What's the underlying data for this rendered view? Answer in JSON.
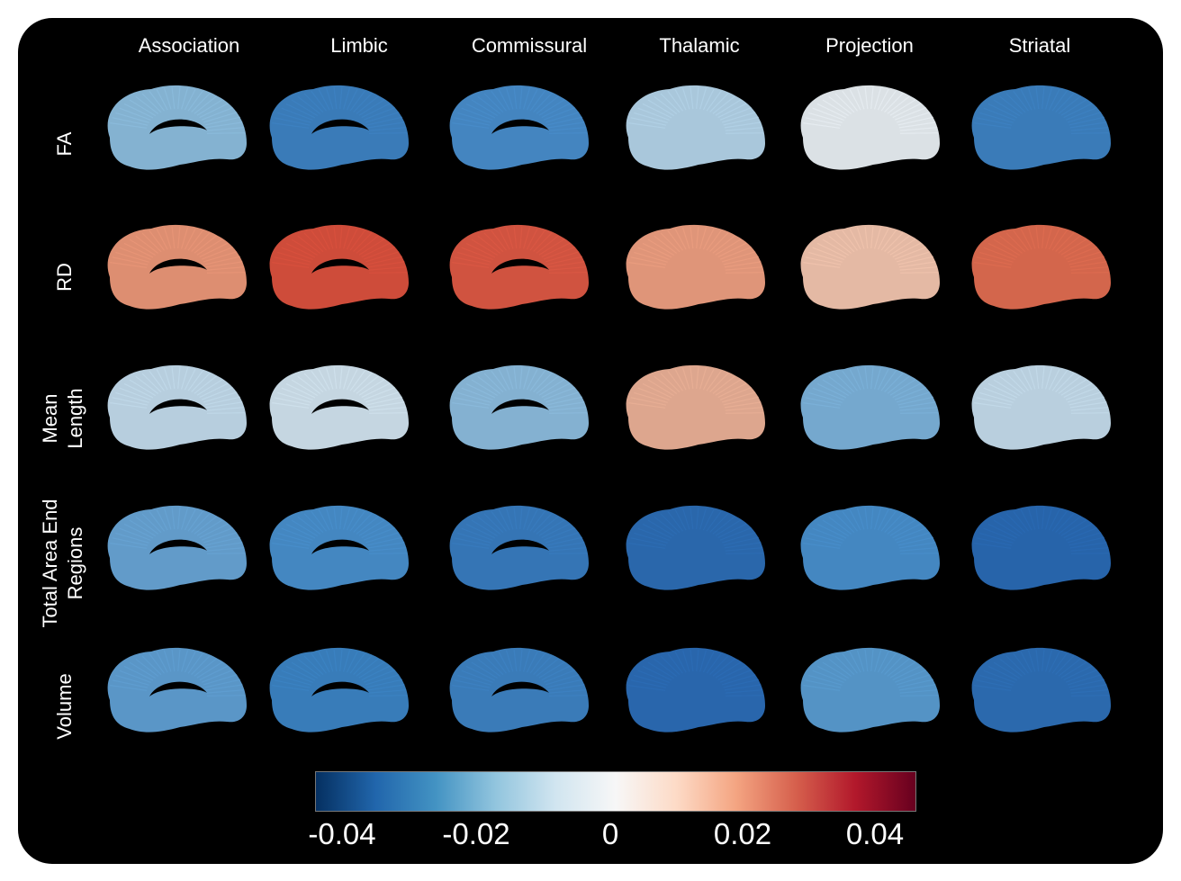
{
  "columns": [
    "Association",
    "Limbic",
    "Commissural",
    "Thalamic",
    "Projection",
    "Striatal"
  ],
  "rows": [
    {
      "lines": [
        "FA"
      ]
    },
    {
      "lines": [
        "RD"
      ]
    },
    {
      "lines": [
        "Mean",
        "Length"
      ]
    },
    {
      "lines": [
        "Total Area End",
        "Regions"
      ]
    },
    {
      "lines": [
        "Volume"
      ]
    }
  ],
  "colorbar": {
    "ticks": [
      "-0.04",
      "-0.02",
      "0",
      "0.02",
      "0.04"
    ],
    "range": [
      -0.05,
      0.05
    ],
    "colormap": [
      "#053061",
      "#2166ac",
      "#4393c3",
      "#92c5de",
      "#d1e5f0",
      "#f7f7f7",
      "#fddbc7",
      "#f4a582",
      "#d6604d",
      "#b2182b",
      "#67001f"
    ]
  },
  "tract_colors": [
    [
      "#8fc1e3",
      "#3f86c8",
      "#4a90d0",
      "#b7d8ee",
      "#eef4f9",
      "#3f86c8"
    ],
    [
      "#f09a7b",
      "#e0533f",
      "#e25a45",
      "#f2a283",
      "#f7c9b2",
      "#e56f52"
    ],
    [
      "#c7e0f1",
      "#d6e8f4",
      "#8fc0e3",
      "#f0b49a",
      "#7fb6df",
      "#c9e1f1"
    ],
    [
      "#6aa8da",
      "#4a92d1",
      "#3a7fc4",
      "#2e70ba",
      "#4a92d1",
      "#2a6cb8"
    ],
    [
      "#62a3d8",
      "#3d87c9",
      "#3f86c8",
      "#2c6fbb",
      "#5b9fd6",
      "#2f72bc"
    ]
  ]
}
